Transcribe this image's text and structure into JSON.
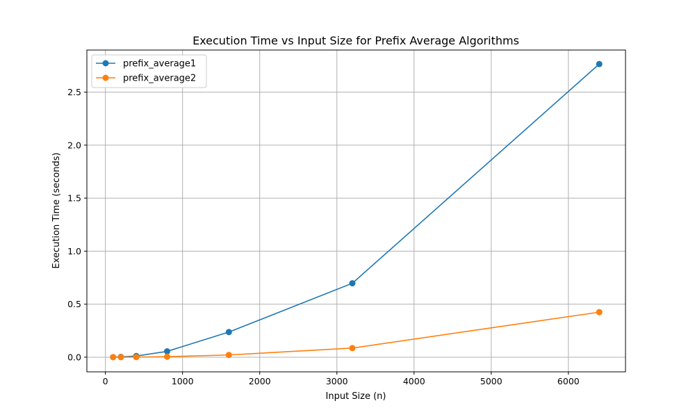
{
  "chart_data": {
    "type": "line",
    "title": "Execution Time vs Input Size for Prefix Average Algorithms",
    "xlabel": "Input Size (n)",
    "ylabel": "Execution Time (seconds)",
    "xlim": [
      -240,
      6740
    ],
    "ylim": [
      -0.138,
      2.897
    ],
    "xticks": [
      0,
      1000,
      2000,
      3000,
      4000,
      5000,
      6000
    ],
    "xtick_labels": [
      "0",
      "1000",
      "2000",
      "3000",
      "4000",
      "5000",
      "6000"
    ],
    "yticks": [
      0.0,
      0.5,
      1.0,
      1.5,
      2.0,
      2.5
    ],
    "ytick_labels": [
      "0.0",
      "0.5",
      "1.0",
      "1.5",
      "2.0",
      "2.5"
    ],
    "grid": true,
    "legend_position": "top-left",
    "x": [
      100,
      200,
      400,
      800,
      1600,
      3200,
      6400
    ],
    "series": [
      {
        "name": "prefix_average1",
        "color": "#1f77b4",
        "marker": "circle",
        "values": [
          0.0007,
          0.0028,
          0.011,
          0.055,
          0.237,
          0.697,
          2.765
        ]
      },
      {
        "name": "prefix_average2",
        "color": "#ff7f0e",
        "marker": "circle",
        "values": [
          0.0001,
          0.0003,
          0.0012,
          0.0048,
          0.021,
          0.086,
          0.425
        ]
      }
    ]
  }
}
